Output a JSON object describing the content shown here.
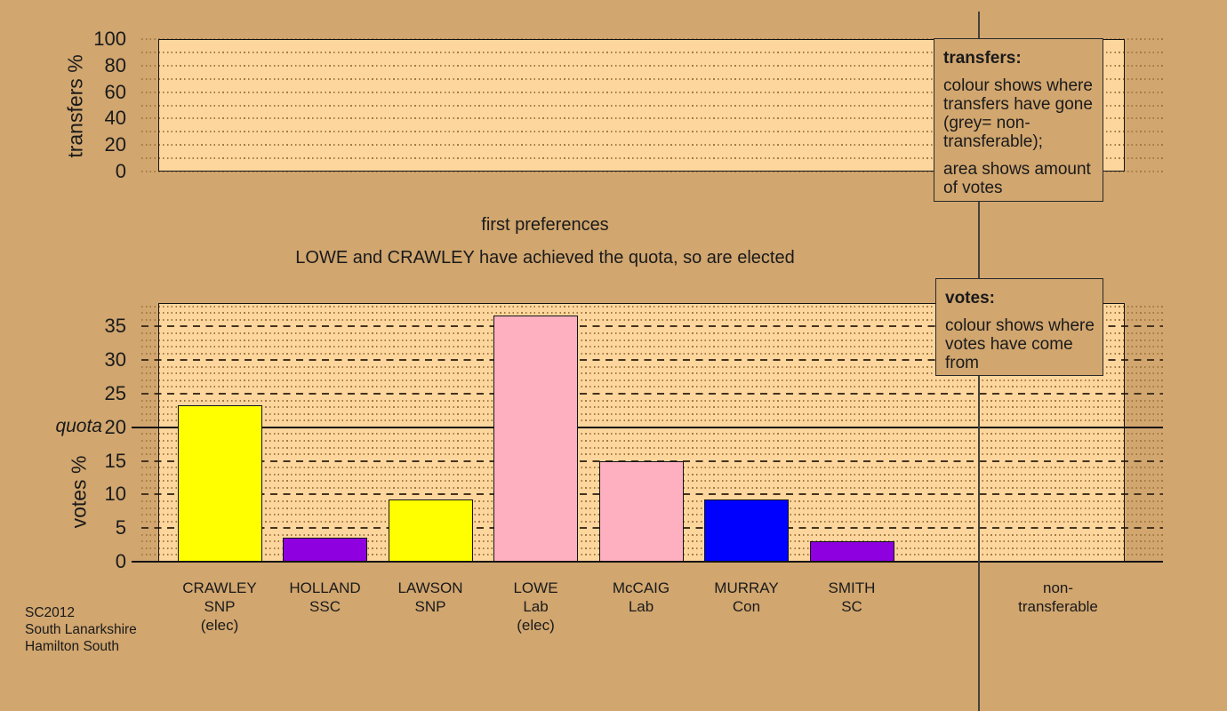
{
  "colors": {
    "background": "#d1a66f",
    "plot_fill": "#fdd69d",
    "grid_dotted": "#a57a42",
    "grid_dashed": "#45331f",
    "axis_line": "#141414",
    "separator_line": "#45413a",
    "text": "#1a1a1a",
    "box_border": "#2a2a2a",
    "bar_border": "#141414",
    "party_colors": {
      "SNP": "#ffff00",
      "SSC": "#8e00e0",
      "Lab": "#ffb0c0",
      "Con": "#0000ff",
      "SC": "#8e00e0"
    }
  },
  "titles": {
    "stage": "first preferences",
    "status": "LOWE and CRAWLEY have achieved the quota, so are elected"
  },
  "footer": {
    "lines": [
      "SC2012",
      "South Lanarkshire",
      "Hamilton South"
    ]
  },
  "info_boxes": {
    "transfers": {
      "title": "transfers:",
      "body_1": "colour shows where transfers have gone (grey= non-transferable);",
      "body_2": "area shows amount of votes"
    },
    "votes": {
      "title": "votes:",
      "body_1": "colour shows where votes have come from"
    }
  },
  "non_transferable_label": {
    "line1": "non-",
    "line2": "transferable"
  },
  "chart_data": [
    {
      "id": "transfers",
      "type": "bar",
      "ylabel": "transfers %",
      "ylim": [
        0,
        100
      ],
      "yticks": [
        0,
        20,
        40,
        60,
        80,
        100
      ],
      "grid_step": 10,
      "grid_style": "dotted",
      "legend_position": "none",
      "categories": [],
      "values": []
    },
    {
      "id": "votes",
      "type": "bar",
      "ylabel": "votes %",
      "ylim": [
        0,
        38.5
      ],
      "yticks": [
        0,
        5,
        10,
        15,
        20,
        25,
        30,
        35
      ],
      "grid_minor_step": 1,
      "grid_major_step": 5,
      "legend_position": "none",
      "quota": {
        "label": "quota",
        "value": 20
      },
      "categories": [
        "CRAWLEY",
        "HOLLAND",
        "LAWSON",
        "LOWE",
        "McCAIG",
        "MURRAY",
        "SMITH"
      ],
      "values": [
        23.3,
        3.6,
        9.2,
        36.6,
        14.9,
        9.2,
        3.0
      ],
      "candidates": [
        {
          "name": "CRAWLEY",
          "party": "SNP",
          "note": "(elec)",
          "value": 23.3,
          "color": "#ffff00"
        },
        {
          "name": "HOLLAND",
          "party": "SSC",
          "note": "",
          "value": 3.6,
          "color": "#8e00e0"
        },
        {
          "name": "LAWSON",
          "party": "SNP",
          "note": "",
          "value": 9.2,
          "color": "#ffff00"
        },
        {
          "name": "LOWE",
          "party": "Lab",
          "note": "(elec)",
          "value": 36.6,
          "color": "#ffb0c0"
        },
        {
          "name": "McCAIG",
          "party": "Lab",
          "note": "",
          "value": 14.9,
          "color": "#ffb0c0"
        },
        {
          "name": "MURRAY",
          "party": "Con",
          "note": "",
          "value": 9.2,
          "color": "#0000ff"
        },
        {
          "name": "SMITH",
          "party": "SC",
          "note": "",
          "value": 3.0,
          "color": "#8e00e0"
        }
      ]
    }
  ]
}
